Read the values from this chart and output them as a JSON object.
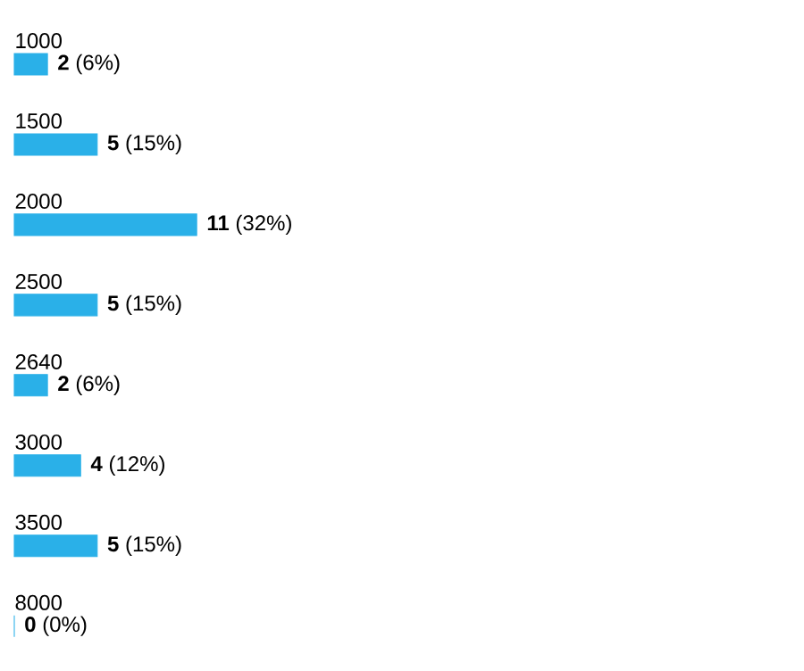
{
  "chart_data": {
    "type": "bar",
    "orientation": "horizontal",
    "categories": [
      "1000",
      "1500",
      "2000",
      "2500",
      "2640",
      "3000",
      "3500",
      "8000"
    ],
    "values": [
      2,
      5,
      11,
      5,
      2,
      4,
      5,
      0
    ],
    "value_labels": [
      "**2** (6%)",
      "**5** (15%)",
      "**11** (32%)",
      "**5** (15%)",
      "**2** (6%)",
      "**4** (12%)",
      "**5** (15%)",
      "**0** (0%)"
    ],
    "color": "#2ab0e8"
  }
}
